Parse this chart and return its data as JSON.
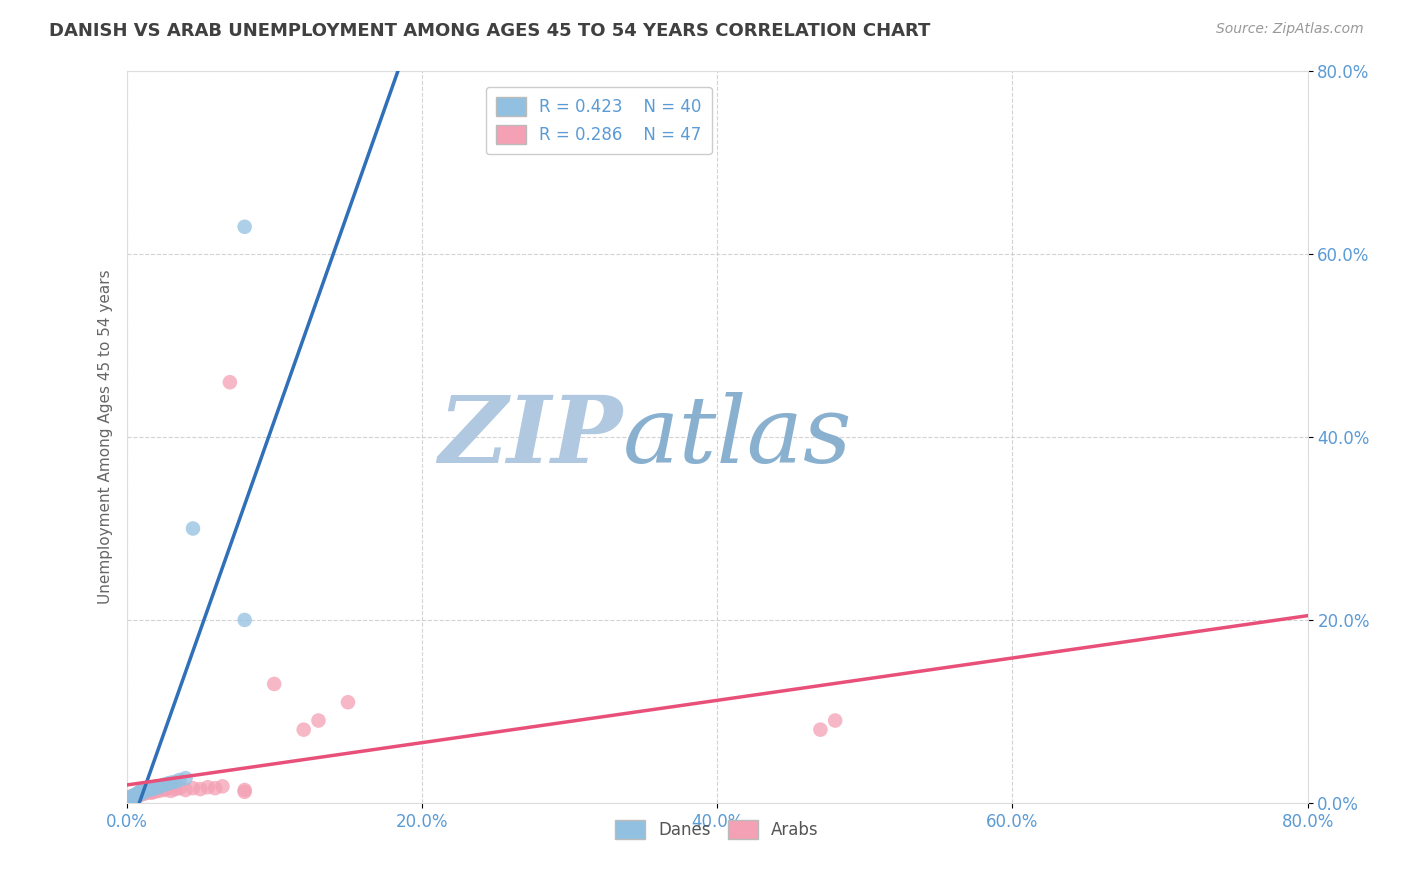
{
  "title": "DANISH VS ARAB UNEMPLOYMENT AMONG AGES 45 TO 54 YEARS CORRELATION CHART",
  "source": "Source: ZipAtlas.com",
  "ylabel": "Unemployment Among Ages 45 to 54 years",
  "xlim": [
    0.0,
    0.8
  ],
  "ylim": [
    0.0,
    0.8
  ],
  "danes_x": [
    0.0,
    0.001,
    0.001,
    0.002,
    0.002,
    0.003,
    0.003,
    0.004,
    0.004,
    0.005,
    0.005,
    0.006,
    0.006,
    0.007,
    0.008,
    0.008,
    0.009,
    0.01,
    0.01,
    0.011,
    0.012,
    0.013,
    0.014,
    0.015,
    0.016,
    0.017,
    0.018,
    0.019,
    0.02,
    0.022,
    0.024,
    0.026,
    0.028,
    0.03,
    0.033,
    0.036,
    0.04,
    0.045,
    0.08,
    0.08
  ],
  "danes_y": [
    0.001,
    0.002,
    0.003,
    0.004,
    0.005,
    0.003,
    0.006,
    0.005,
    0.007,
    0.006,
    0.008,
    0.007,
    0.009,
    0.008,
    0.01,
    0.011,
    0.012,
    0.01,
    0.013,
    0.012,
    0.014,
    0.013,
    0.015,
    0.014,
    0.016,
    0.015,
    0.017,
    0.016,
    0.018,
    0.017,
    0.019,
    0.02,
    0.021,
    0.022,
    0.023,
    0.025,
    0.027,
    0.3,
    0.63,
    0.2
  ],
  "arabs_x": [
    0.0,
    0.001,
    0.001,
    0.002,
    0.002,
    0.003,
    0.003,
    0.004,
    0.005,
    0.005,
    0.006,
    0.007,
    0.008,
    0.009,
    0.01,
    0.011,
    0.012,
    0.013,
    0.014,
    0.015,
    0.016,
    0.017,
    0.018,
    0.019,
    0.02,
    0.022,
    0.024,
    0.026,
    0.028,
    0.03,
    0.033,
    0.036,
    0.04,
    0.045,
    0.05,
    0.055,
    0.06,
    0.065,
    0.07,
    0.08,
    0.08,
    0.1,
    0.12,
    0.13,
    0.15,
    0.47,
    0.48
  ],
  "arabs_y": [
    0.001,
    0.002,
    0.004,
    0.003,
    0.006,
    0.005,
    0.007,
    0.006,
    0.005,
    0.008,
    0.007,
    0.009,
    0.008,
    0.01,
    0.009,
    0.011,
    0.01,
    0.012,
    0.011,
    0.013,
    0.012,
    0.011,
    0.013,
    0.012,
    0.014,
    0.013,
    0.015,
    0.014,
    0.016,
    0.013,
    0.015,
    0.016,
    0.014,
    0.016,
    0.015,
    0.017,
    0.016,
    0.018,
    0.46,
    0.012,
    0.014,
    0.13,
    0.08,
    0.09,
    0.11,
    0.08,
    0.09
  ],
  "danes_color": "#92c0e0",
  "arabs_color": "#f4a0b5",
  "danes_line_color": "#3070b8",
  "arabs_line_color": "#e8507a",
  "background_color": "#ffffff",
  "grid_color": "#c8c8c8",
  "title_color": "#404040",
  "axis_label_color": "#5b9bd5",
  "ylabel_color": "#666666",
  "watermark_zip": "ZIP",
  "watermark_atlas": "atlas",
  "watermark_color_zip": "#b0c8e0",
  "watermark_color_atlas": "#8ab0d0"
}
